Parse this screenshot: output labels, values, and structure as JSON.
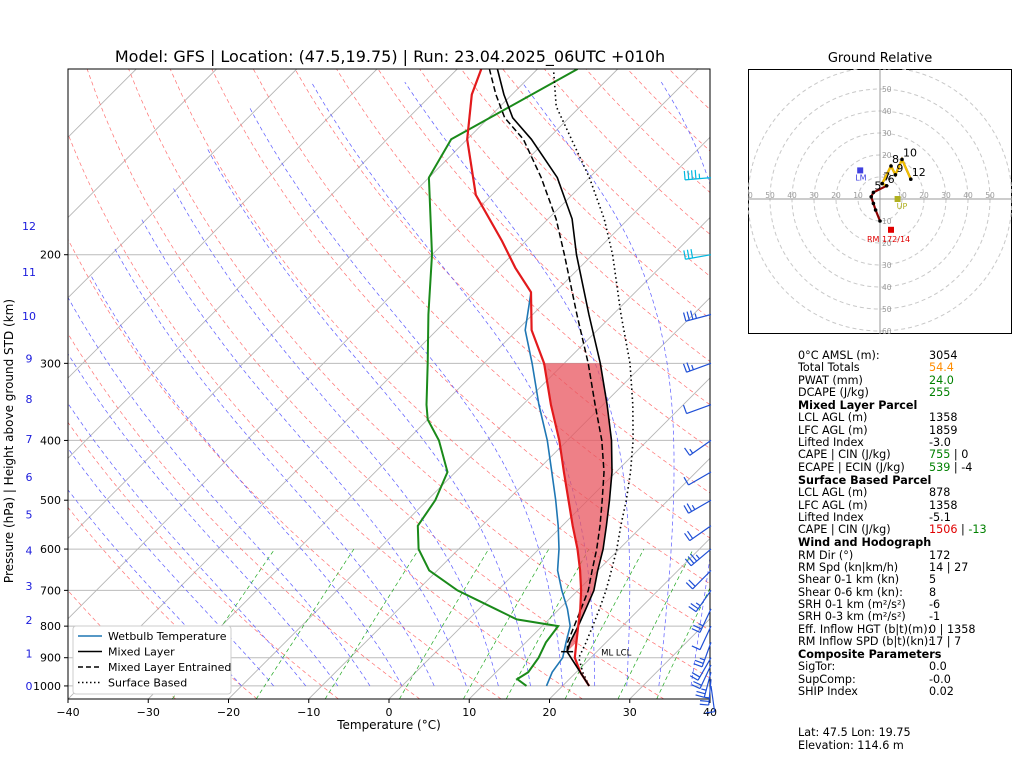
{
  "chart_data": [
    {
      "type": "line",
      "title": "Model: GFS | Location: (47.5,19.75) | Run: 23.04.2025_06UTC +010h",
      "xlabel": "Temperature (°C)",
      "ylabel": "Pressure (hPa)   |   Height above ground STD (km)",
      "xlim": [
        -40,
        40
      ],
      "ylim_pressure": [
        1050,
        100
      ],
      "x_ticks": [
        "−40",
        "−30",
        "−20",
        "−10",
        "0",
        "10",
        "20",
        "30",
        "40"
      ],
      "pressure_ticks": [
        "1000",
        "900",
        "800",
        "700",
        "600",
        "500",
        "400",
        "300",
        "200"
      ],
      "height_ticks": [
        "0",
        "1",
        "2",
        "3",
        "4",
        "5",
        "6",
        "7",
        "8",
        "9",
        "10",
        "11",
        "12"
      ],
      "skew_log_axis": true,
      "grid": true,
      "legend_position": "bottom-left",
      "legend": [
        "Wetbulb Temperature",
        "Mixed Layer",
        "Mixed Layer Entrained",
        "Surface Based"
      ],
      "annotations": [
        "ML LCL"
      ],
      "colors": {
        "temperature": "#e31a1c",
        "dewpoint": "#1a8a1a",
        "wetbulb": "#1f77b4",
        "parcel": "#000000",
        "cape_fill": "#e8555f",
        "wind_barbs": "#1f4fd6",
        "height_axis": "#1a1adc"
      },
      "series": [
        {
          "name": "Temperature",
          "points": [
            [
              23.3,
              1000
            ],
            [
              20.5,
              950
            ],
            [
              18,
              900
            ],
            [
              16.3,
              850
            ],
            [
              14.5,
              800
            ],
            [
              12.6,
              750
            ],
            [
              10.4,
              700
            ],
            [
              7.8,
              650
            ],
            [
              4.8,
              600
            ],
            [
              1.3,
              550
            ],
            [
              -2.4,
              500
            ],
            [
              -6.5,
              450
            ],
            [
              -11,
              400
            ],
            [
              -16.5,
              350
            ],
            [
              -22.5,
              300
            ],
            [
              -28.2,
              265
            ],
            [
              -33,
              230
            ],
            [
              -38,
              210
            ],
            [
              -43,
              190
            ],
            [
              -52,
              160
            ],
            [
              -60,
              130
            ],
            [
              -65,
              110
            ],
            [
              -67,
              100
            ]
          ]
        },
        {
          "name": "Dewpoint",
          "points": [
            [
              15.5,
              1000
            ],
            [
              13.5,
              975
            ],
            [
              14,
              950
            ],
            [
              13.5,
              900
            ],
            [
              12.5,
              850
            ],
            [
              12,
              800
            ],
            [
              6,
              780
            ],
            [
              2,
              750
            ],
            [
              -5,
              700
            ],
            [
              -11,
              650
            ],
            [
              -15,
              600
            ],
            [
              -18,
              550
            ],
            [
              -19,
              500
            ],
            [
              -21,
              450
            ],
            [
              -26,
              400
            ],
            [
              -30,
              370
            ],
            [
              -32,
              350
            ],
            [
              -37,
              300
            ],
            [
              -43,
              250
            ],
            [
              -50,
              200
            ],
            [
              -60,
              150
            ],
            [
              -62,
              130
            ],
            [
              -55,
              100
            ]
          ]
        },
        {
          "name": "Wetbulb Temperature",
          "points": [
            [
              18,
              1000
            ],
            [
              17,
              950
            ],
            [
              16.5,
              900
            ],
            [
              15,
              850
            ],
            [
              13.5,
              800
            ],
            [
              11,
              750
            ],
            [
              8,
              700
            ],
            [
              5,
              650
            ],
            [
              2.5,
              600
            ],
            [
              -0.5,
              550
            ],
            [
              -4,
              500
            ],
            [
              -8,
              450
            ],
            [
              -12.5,
              400
            ],
            [
              -18,
              350
            ],
            [
              -24,
              300
            ],
            [
              -29,
              265
            ],
            [
              -33,
              230
            ],
            [
              -38,
              210
            ],
            [
              -43,
              190
            ],
            [
              -52,
              160
            ],
            [
              -60,
              130
            ],
            [
              -65,
              110
            ],
            [
              -67,
              100
            ]
          ]
        },
        {
          "name": "Mixed Layer",
          "points": [
            [
              16.3,
              880
            ],
            [
              15.5,
              850
            ],
            [
              14.5,
              800
            ],
            [
              13.3,
              750
            ],
            [
              12,
              700
            ],
            [
              10,
              650
            ],
            [
              8,
              600
            ],
            [
              5.5,
              550
            ],
            [
              2.7,
              500
            ],
            [
              -0.5,
              450
            ],
            [
              -4.5,
              400
            ],
            [
              -9.5,
              350
            ],
            [
              -15.5,
              300
            ],
            [
              -23,
              250
            ],
            [
              -32,
              200
            ],
            [
              -37,
              175
            ],
            [
              -44,
              150
            ],
            [
              -52,
              130
            ],
            [
              -57,
              120
            ],
            [
              -61,
              110
            ],
            [
              -65,
              100
            ]
          ]
        },
        {
          "name": "Mixed Layer Entrained",
          "points": [
            [
              16.3,
              880
            ],
            [
              15.2,
              850
            ],
            [
              14,
              800
            ],
            [
              12.7,
              750
            ],
            [
              11.3,
              700
            ],
            [
              9.3,
              650
            ],
            [
              7.2,
              600
            ],
            [
              4.7,
              550
            ],
            [
              1.8,
              500
            ],
            [
              -1.5,
              450
            ],
            [
              -5.7,
              400
            ],
            [
              -11,
              350
            ],
            [
              -17,
              300
            ],
            [
              -24.5,
              250
            ],
            [
              -33.5,
              200
            ],
            [
              -39,
              175
            ],
            [
              -46,
              150
            ],
            [
              -53,
              130
            ],
            [
              -58,
              120
            ],
            [
              -62,
              110
            ],
            [
              -66,
              100
            ]
          ]
        },
        {
          "name": "Surface Based",
          "points": [
            [
              23.3,
              1000
            ],
            [
              20.8,
              950
            ],
            [
              18.5,
              900
            ],
            [
              17.5,
              850
            ],
            [
              16.3,
              800
            ],
            [
              15,
              750
            ],
            [
              13.5,
              700
            ],
            [
              11.7,
              650
            ],
            [
              9.7,
              600
            ],
            [
              7.3,
              550
            ],
            [
              4.8,
              500
            ],
            [
              1.8,
              450
            ],
            [
              -1.8,
              400
            ],
            [
              -6.3,
              350
            ],
            [
              -11.8,
              300
            ],
            [
              -19,
              250
            ],
            [
              -27.5,
              200
            ],
            [
              -33,
              175
            ],
            [
              -40,
              150
            ],
            [
              -47,
              130
            ],
            [
              -53,
              115
            ],
            [
              -58,
              100
            ]
          ]
        }
      ],
      "wind_profile": [
        {
          "p": 1000,
          "dir": 172,
          "spd": 10
        },
        {
          "p": 975,
          "dir": 185,
          "spd": 15
        },
        {
          "p": 950,
          "dir": 195,
          "spd": 18
        },
        {
          "p": 925,
          "dir": 205,
          "spd": 20
        },
        {
          "p": 900,
          "dir": 210,
          "spd": 20
        },
        {
          "p": 850,
          "dir": 200,
          "spd": 15
        },
        {
          "p": 800,
          "dir": 205,
          "spd": 14
        },
        {
          "p": 750,
          "dir": 205,
          "spd": 15
        },
        {
          "p": 700,
          "dir": 215,
          "spd": 15
        },
        {
          "p": 650,
          "dir": 225,
          "spd": 22
        },
        {
          "p": 600,
          "dir": 230,
          "spd": 25
        },
        {
          "p": 550,
          "dir": 235,
          "spd": 20
        },
        {
          "p": 500,
          "dir": 240,
          "spd": 15
        },
        {
          "p": 450,
          "dir": 240,
          "spd": 10
        },
        {
          "p": 400,
          "dir": 235,
          "spd": 5
        },
        {
          "p": 350,
          "dir": 250,
          "spd": 10
        },
        {
          "p": 300,
          "dir": 250,
          "spd": 15
        },
        {
          "p": 250,
          "dir": 255,
          "spd": 25
        },
        {
          "p": 200,
          "dir": 260,
          "spd": 30
        },
        {
          "p": 150,
          "dir": 265,
          "spd": 35
        }
      ]
    },
    {
      "type": "scatter",
      "title": "Ground Relative",
      "rings": [
        10,
        20,
        30,
        40,
        50,
        60
      ],
      "axis_tick_labels": [
        "60",
        "50",
        "40",
        "30",
        "20",
        "10",
        "10",
        "20",
        "30",
        "40",
        "50"
      ],
      "height_labels": [
        "1",
        "2",
        "3",
        "4",
        "5",
        "6",
        "7",
        "8",
        "9",
        "10",
        "12"
      ],
      "points": [
        {
          "label": "1",
          "u": 0,
          "v": -10
        },
        {
          "label": "2",
          "u": -2,
          "v": -5
        },
        {
          "label": "3",
          "u": -3,
          "v": -2
        },
        {
          "label": "4",
          "u": -4,
          "v": 1
        },
        {
          "label": "5",
          "u": -3,
          "v": 3
        },
        {
          "label": "6",
          "u": 3,
          "v": 6
        },
        {
          "label": "7",
          "u": 1,
          "v": 7
        },
        {
          "label": "8",
          "u": 5,
          "v": 15
        },
        {
          "label": "9",
          "u": 7,
          "v": 11
        },
        {
          "label": "10",
          "u": 10,
          "v": 18
        },
        {
          "label": "12",
          "u": 14,
          "v": 9
        }
      ],
      "markers": [
        {
          "name": "LM",
          "u": -9,
          "v": 13,
          "color": "#4040e0"
        },
        {
          "name": "RM",
          "u": 5,
          "v": -14,
          "color": "#e00000",
          "label": "RM 172/14"
        },
        {
          "name": "UP",
          "u": 8,
          "v": 0,
          "color": "#b0b020"
        }
      ]
    }
  ],
  "params": {
    "top": [
      {
        "k": "0°C AMSL (m):",
        "v": "3054",
        "c": ""
      },
      {
        "k": "Total Totals",
        "v": "54.4",
        "c": "orange"
      },
      {
        "k": "PWAT (mm)",
        "v": "24.0",
        "c": "green"
      },
      {
        "k": "DCAPE (J/kg)",
        "v": "255",
        "c": "green"
      }
    ],
    "ml_head": "Mixed Layer Parcel",
    "ml": [
      {
        "k": "LCL AGL (m)",
        "v": "1358"
      },
      {
        "k": "LFC AGL (m)",
        "v": "1859"
      },
      {
        "k": "Lifted Index",
        "v": "-3.0"
      }
    ],
    "ml_cape_k": "CAPE | CIN (J/kg)",
    "ml_cape_a": "755",
    "ml_cape_b": "0",
    "ml_ecape_k": "ECAPE | ECIN (J/kg)",
    "ml_ecape_a": "539",
    "ml_ecape_b": "-4",
    "sb_head": "Surface Based Parcel",
    "sb": [
      {
        "k": "LCL AGL (m)",
        "v": "878"
      },
      {
        "k": "LFC AGL (m)",
        "v": "1358"
      },
      {
        "k": "Lifted Index",
        "v": "-5.1"
      }
    ],
    "sb_cape_k": "CAPE | CIN (J/kg)",
    "sb_cape_a": "1506",
    "sb_cape_b": "-13",
    "wind_head": "Wind and Hodograph",
    "wind": [
      {
        "k": "RM Dir (°)",
        "v": "172"
      },
      {
        "k": "RM Spd (kn|km/h)",
        "v": "14 | 27"
      },
      {
        "k": "Shear 0-1 km (kn)",
        "v": "5"
      },
      {
        "k": "Shear 0-6 km (kn):",
        "v": "8"
      },
      {
        "k": "SRH 0-1 km (m²/s²)",
        "v": "-6"
      },
      {
        "k": "SRH 0-3 km (m²/s²)",
        "v": "-1"
      },
      {
        "k": "Eff. Inflow HGT (b|t)(m):",
        "v": "0 | 1358"
      },
      {
        "k": "RM Inflow SPD (b|t)(kn):",
        "v": "17 | 7"
      }
    ],
    "comp_head": "Composite Parameters",
    "comp": [
      {
        "k": "SigTor:",
        "v": "0.0"
      },
      {
        "k": "SupComp:",
        "v": "-0.0"
      },
      {
        "k": "SHIP Index",
        "v": "0.02"
      }
    ]
  },
  "footer": {
    "latlon": "Lat: 47.5  Lon: 19.75",
    "elev": "Elevation: 114.6 m"
  }
}
